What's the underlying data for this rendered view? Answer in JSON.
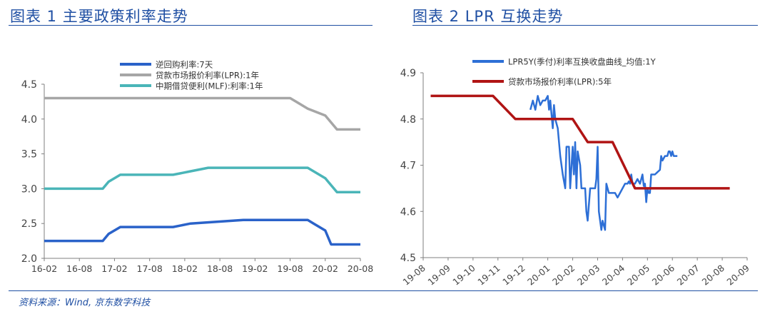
{
  "figure1": {
    "title": "图表 1  主要政策利率走势"
  },
  "figure2": {
    "title": "图表 2 LPR 互换走势"
  },
  "source": "资料来源：Wind, 京东数字科技",
  "chart_data": [
    {
      "type": "line",
      "ylim": [
        2.0,
        4.5
      ],
      "yticks": [
        "2.0",
        "2.5",
        "3.0",
        "3.5",
        "4.0",
        "4.5"
      ],
      "xticks": [
        "16-02",
        "16-08",
        "17-02",
        "17-08",
        "18-02",
        "18-08",
        "19-02",
        "19-08",
        "20-02",
        "20-08"
      ],
      "legend_position": "top",
      "grid": false,
      "series": [
        {
          "name": "逆回购利率:7天",
          "color": "#2a62c9",
          "points": [
            [
              "2016-02",
              2.25
            ],
            [
              "2016-12",
              2.25
            ],
            [
              "2017-01",
              2.35
            ],
            [
              "2017-03",
              2.45
            ],
            [
              "2017-12",
              2.45
            ],
            [
              "2018-03",
              2.5
            ],
            [
              "2018-12",
              2.55
            ],
            [
              "2019-11",
              2.55
            ],
            [
              "2019-12",
              2.5
            ],
            [
              "2020-02",
              2.4
            ],
            [
              "2020-03",
              2.2
            ],
            [
              "2020-08",
              2.2
            ]
          ]
        },
        {
          "name": "贷款市场报价利率(LPR):1年",
          "color": "#a6a6a6",
          "points": [
            [
              "2016-02",
              4.3
            ],
            [
              "2019-08",
              4.3
            ],
            [
              "2019-09",
              4.25
            ],
            [
              "2019-11",
              4.15
            ],
            [
              "2020-02",
              4.05
            ],
            [
              "2020-04",
              3.85
            ],
            [
              "2020-08",
              3.85
            ]
          ]
        },
        {
          "name": "中期借贷便利(MLF):利率:1年",
          "color": "#4ab5b8",
          "points": [
            [
              "2016-02",
              3.0
            ],
            [
              "2016-12",
              3.0
            ],
            [
              "2017-01",
              3.1
            ],
            [
              "2017-03",
              3.2
            ],
            [
              "2017-12",
              3.2
            ],
            [
              "2018-03",
              3.25
            ],
            [
              "2018-06",
              3.3
            ],
            [
              "2019-11",
              3.3
            ],
            [
              "2019-12",
              3.25
            ],
            [
              "2020-02",
              3.15
            ],
            [
              "2020-04",
              2.95
            ],
            [
              "2020-08",
              2.95
            ]
          ]
        }
      ]
    },
    {
      "type": "line",
      "ylim": [
        4.5,
        4.9
      ],
      "yticks": [
        "4.5",
        "4.6",
        "4.7",
        "4.8",
        "4.9"
      ],
      "xticks": [
        "19-08",
        "19-09",
        "19-10",
        "19-11",
        "19-12",
        "20-01",
        "20-02",
        "20-03",
        "20-04",
        "20-05",
        "20-06",
        "20-07",
        "20-08",
        "20-09"
      ],
      "legend_position": "top",
      "grid": false,
      "series": [
        {
          "name": "LPR5Y(季付)利率互换收盘曲线_均值:1Y",
          "color": "#2d6fd6",
          "points": [
            [
              4.3,
              4.82
            ],
            [
              4.4,
              4.84
            ],
            [
              4.5,
              4.82
            ],
            [
              4.6,
              4.85
            ],
            [
              4.7,
              4.83
            ],
            [
              4.8,
              4.84
            ],
            [
              4.9,
              4.84
            ],
            [
              5.0,
              4.85
            ],
            [
              5.05,
              4.82
            ],
            [
              5.1,
              4.84
            ],
            [
              5.2,
              4.78
            ],
            [
              5.25,
              4.83
            ],
            [
              5.3,
              4.8
            ],
            [
              5.4,
              4.78
            ],
            [
              5.5,
              4.72
            ],
            [
              5.6,
              4.68
            ],
            [
              5.7,
              4.65
            ],
            [
              5.75,
              4.74
            ],
            [
              5.85,
              4.74
            ],
            [
              5.9,
              4.65
            ],
            [
              6.0,
              4.74
            ],
            [
              6.05,
              4.68
            ],
            [
              6.1,
              4.75
            ],
            [
              6.15,
              4.65
            ],
            [
              6.2,
              4.73
            ],
            [
              6.3,
              4.7
            ],
            [
              6.35,
              4.65
            ],
            [
              6.5,
              4.65
            ],
            [
              6.55,
              4.6
            ],
            [
              6.6,
              4.58
            ],
            [
              6.7,
              4.65
            ],
            [
              6.8,
              4.65
            ],
            [
              6.9,
              4.65
            ],
            [
              6.95,
              4.67
            ],
            [
              7.0,
              4.74
            ],
            [
              7.05,
              4.6
            ],
            [
              7.15,
              4.56
            ],
            [
              7.2,
              4.58
            ],
            [
              7.3,
              4.56
            ],
            [
              7.35,
              4.66
            ],
            [
              7.45,
              4.64
            ],
            [
              7.5,
              4.64
            ],
            [
              7.6,
              4.64
            ],
            [
              7.7,
              4.64
            ],
            [
              7.8,
              4.63
            ],
            [
              7.9,
              4.64
            ],
            [
              8.0,
              4.65
            ],
            [
              8.1,
              4.66
            ],
            [
              8.2,
              4.66
            ],
            [
              8.25,
              4.665
            ],
            [
              8.3,
              4.66
            ],
            [
              8.35,
              4.68
            ],
            [
              8.4,
              4.66
            ],
            [
              8.5,
              4.66
            ],
            [
              8.6,
              4.67
            ],
            [
              8.7,
              4.66
            ],
            [
              8.75,
              4.67
            ],
            [
              8.8,
              4.68
            ],
            [
              8.85,
              4.655
            ],
            [
              8.9,
              4.66
            ],
            [
              8.95,
              4.62
            ],
            [
              9.0,
              4.65
            ],
            [
              9.05,
              4.64
            ],
            [
              9.1,
              4.64
            ],
            [
              9.15,
              4.68
            ],
            [
              9.3,
              4.68
            ],
            [
              9.4,
              4.685
            ],
            [
              9.5,
              4.69
            ],
            [
              9.55,
              4.72
            ],
            [
              9.6,
              4.71
            ],
            [
              9.7,
              4.72
            ],
            [
              9.8,
              4.72
            ],
            [
              9.85,
              4.73
            ],
            [
              9.9,
              4.73
            ],
            [
              9.95,
              4.72
            ],
            [
              10.0,
              4.73
            ],
            [
              10.05,
              4.72
            ],
            [
              10.2,
              4.72
            ]
          ]
        },
        {
          "name": "贷款市场报价利率(LPR):5年",
          "color": "#b01414",
          "points": [
            [
              0.3,
              4.85
            ],
            [
              2.8,
              4.85
            ],
            [
              3.7,
              4.8
            ],
            [
              6.0,
              4.8
            ],
            [
              6.6,
              4.75
            ],
            [
              7.6,
              4.75
            ],
            [
              8.5,
              4.65
            ],
            [
              12.3,
              4.65
            ]
          ]
        }
      ]
    }
  ]
}
